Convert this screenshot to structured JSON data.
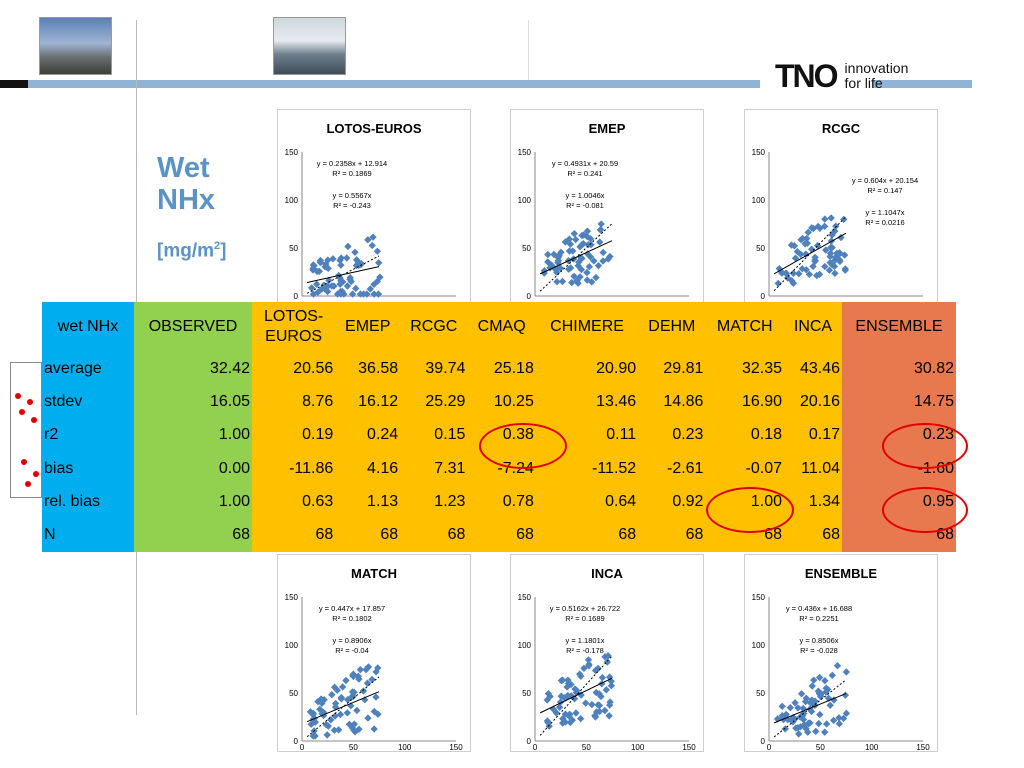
{
  "header": {
    "logo_mark": "TNO",
    "logo_line1": "innovation",
    "logo_line2": "for life"
  },
  "slide": {
    "title_line1": "Wet",
    "title_line2": "NHx",
    "unit_base": "[mg/m",
    "unit_sup": "2",
    "unit_end": "]"
  },
  "charts": [
    {
      "title": "LOTOS-EUROS",
      "eq1": "y = 0.2358x + 12.914",
      "r1": "R² = 0.1869",
      "eq2": "y = 0.5567x",
      "r2": "R² = -0.243",
      "slope": 0.2358,
      "intercept": 12.914,
      "slope0": 0.5567,
      "xticks": [],
      "yticks": [
        "0",
        "50",
        "100",
        "150"
      ]
    },
    {
      "title": "EMEP",
      "eq1": "y = 0.4931x + 20.59",
      "r1": "R² = 0.241",
      "eq2": "y = 1.0046x",
      "r2": "R² = -0.081",
      "slope": 0.4931,
      "intercept": 20.59,
      "slope0": 1.0046,
      "xticks": [],
      "yticks": [
        "0",
        "50",
        "100",
        "150"
      ]
    },
    {
      "title": "RCGC",
      "eq1": "y = 0.604x + 20.154",
      "r1": "R² = 0.147",
      "eq2": "y = 1.1047x",
      "r2": "R² = 0.0216",
      "slope": 0.604,
      "intercept": 20.154,
      "slope0": 1.1047,
      "xticks": [],
      "yticks": [
        "0",
        "50",
        "100",
        "150"
      ]
    },
    {
      "title": "MATCH",
      "eq1": "y = 0.447x + 17.857",
      "r1": "R² = 0.1802",
      "eq2": "y = 0.8906x",
      "r2": "R² = -0.04",
      "slope": 0.447,
      "intercept": 17.857,
      "slope0": 0.8906,
      "xticks": [
        "0",
        "50",
        "100",
        "150"
      ],
      "yticks": [
        "0",
        "50",
        "100",
        "150"
      ]
    },
    {
      "title": "INCA",
      "eq1": "y = 0.5162x + 26.722",
      "r1": "R² = 0.1689",
      "eq2": "y = 1.1801x",
      "r2": "R² = -0.178",
      "slope": 0.5162,
      "intercept": 26.722,
      "slope0": 1.1801,
      "xticks": [
        "0",
        "50",
        "100",
        "150"
      ],
      "yticks": [
        "0",
        "50",
        "100",
        "150"
      ]
    },
    {
      "title": "ENSEMBLE",
      "eq1": "y = 0.436x + 16.688",
      "r1": "R² = 0.2251",
      "eq2": "y = 0.8506x",
      "r2": "R² = -0.028",
      "slope": 0.436,
      "intercept": 16.688,
      "slope0": 0.8506,
      "xticks": [
        "0",
        "50",
        "100",
        "150"
      ],
      "yticks": [
        "0",
        "50",
        "100",
        "150"
      ]
    }
  ],
  "table": {
    "corner": "wet NHx",
    "obs_header": "OBSERVED",
    "model_headers": [
      "LOTOS-\nEUROS",
      "EMEP",
      "RCGC",
      "CMAQ",
      "CHIMERE",
      "DEHM",
      "MATCH",
      "INCA"
    ],
    "ens_header": "ENSEMBLE",
    "rows": [
      {
        "label": "average",
        "obs": "32.42",
        "models": [
          "20.56",
          "36.58",
          "39.74",
          "25.18",
          "20.90",
          "29.81",
          "32.35",
          "43.46"
        ],
        "ens": "30.82"
      },
      {
        "label": "stdev",
        "obs": "16.05",
        "models": [
          "8.76",
          "16.12",
          "25.29",
          "10.25",
          "13.46",
          "14.86",
          "16.90",
          "20.16"
        ],
        "ens": "14.75"
      },
      {
        "label": "r2",
        "obs": "1.00",
        "models": [
          "0.19",
          "0.24",
          "0.15",
          "0.38",
          "0.11",
          "0.23",
          "0.18",
          "0.17"
        ],
        "ens": "0.23"
      },
      {
        "label": "bias",
        "obs": "0.00",
        "models": [
          "-11.86",
          "4.16",
          "7.31",
          "-7.24",
          "-11.52",
          "-2.61",
          "-0.07",
          "11.04"
        ],
        "ens": "-1.60"
      },
      {
        "label": "rel. bias",
        "obs": "1.00",
        "models": [
          "0.63",
          "1.13",
          "1.23",
          "0.78",
          "0.64",
          "0.92",
          "1.00",
          "1.34"
        ],
        "ens": "0.95"
      },
      {
        "label": "N",
        "obs": "68",
        "models": [
          "68",
          "68",
          "68",
          "68",
          "68",
          "68",
          "68",
          "68"
        ],
        "ens": "68"
      }
    ]
  }
}
